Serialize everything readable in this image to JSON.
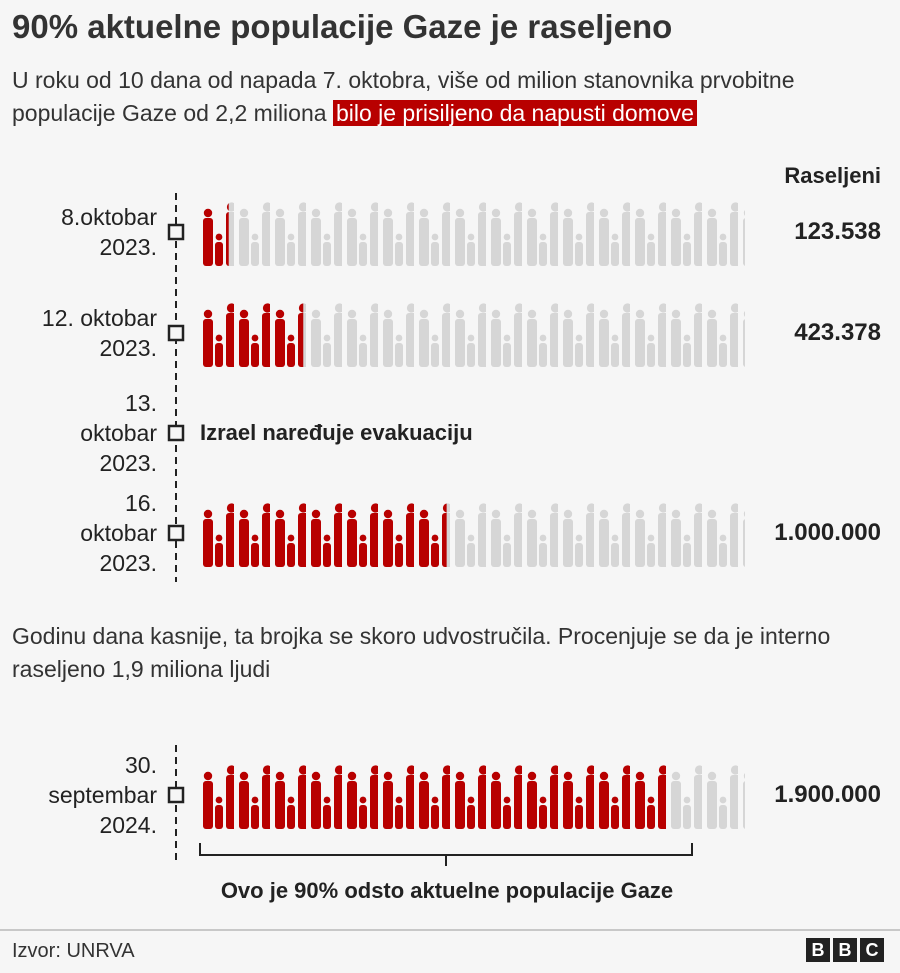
{
  "chart_data": {
    "type": "pictogram",
    "title": "90% aktuelne populacije Gaze je raseljeno",
    "subtitle": "U roku od 10 dana od napada 7. oktobra, više od milion stanovnika prvobitne populacije Gaze od 2,2 miliona",
    "subtitle_highlight": "bilo je prisiljeno da napusti domove",
    "value_header": "Raseljeni",
    "categories": [
      "8.oktobar 2023.",
      "12. oktobar 2023.",
      "13. oktobar 2023.",
      "16. oktobar 2023.",
      "30. septembar 2024."
    ],
    "values": [
      123538,
      423378,
      null,
      1000000,
      1900000
    ],
    "value_labels": [
      "123.538",
      "423.378",
      null,
      "1.000.000",
      "1.900.000"
    ],
    "annotation": "Izrael naređuje evakuaciju",
    "note": "Godinu dana kasnije, ta brojka se skoro udvostručila. Procenjuje se da je interno raseljeno 1,9 miliona ljudi",
    "bracket_label": "Ovo je 90% odsto aktuelne populacije Gaze",
    "xlim": [
      0,
      2200000
    ],
    "color": "#b80000",
    "background_color": "#d6d6d6",
    "source": "Izvor: UNRVA",
    "logo": [
      "B",
      "B",
      "C"
    ]
  }
}
